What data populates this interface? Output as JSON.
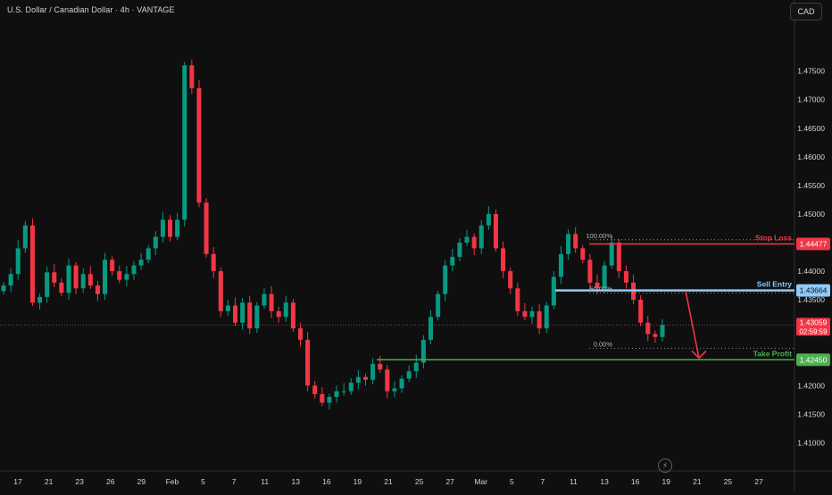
{
  "header": {
    "title": "U.S. Dollar / Canadian Dollar · 4h · VANTAGE",
    "currency_button": "CAD"
  },
  "colors": {
    "background": "#0f0f0f",
    "up": "#089981",
    "down": "#f23645",
    "stop_loss": "#f23645",
    "sell_entry": "#90caf9",
    "take_profit": "#4caf50",
    "current_price": "#f23645",
    "axis_text": "#d1d4dc"
  },
  "chart_data": {
    "type": "candlestick",
    "symbol": "USDCAD",
    "timeframe": "4h",
    "broker": "VANTAGE",
    "y_axis": {
      "ticks": [
        "1.47500",
        "1.47000",
        "1.46500",
        "1.46000",
        "1.45500",
        "1.45000",
        "1.44000",
        "1.43500",
        "1.42000",
        "1.41500",
        "1.41000"
      ],
      "ylim": [
        1.406,
        1.484
      ]
    },
    "x_axis": {
      "ticks": [
        "17",
        "21",
        "23",
        "26",
        "29",
        "Feb",
        "5",
        "7",
        "11",
        "13",
        "16",
        "19",
        "21",
        "25",
        "27",
        "Mar",
        "5",
        "7",
        "11",
        "13",
        "16",
        "19",
        "21",
        "25",
        "27"
      ]
    },
    "candles_close_path": [
      1.4375,
      1.4395,
      1.444,
      1.448,
      1.4345,
      1.4355,
      1.4398,
      1.438,
      1.4362,
      1.441,
      1.437,
      1.4395,
      1.4375,
      1.436,
      1.442,
      1.44,
      1.4385,
      1.4395,
      1.441,
      1.442,
      1.444,
      1.446,
      1.449,
      1.446,
      1.449,
      1.476,
      1.472,
      1.452,
      1.443,
      1.44,
      1.433,
      1.434,
      1.431,
      1.4345,
      1.43,
      1.434,
      1.436,
      1.433,
      1.432,
      1.4345,
      1.43,
      1.428,
      1.42,
      1.4185,
      1.417,
      1.418,
      1.419,
      1.419,
      1.4205,
      1.4215,
      1.421,
      1.4238,
      1.4228,
      1.419,
      1.4195,
      1.4212,
      1.4225,
      1.424,
      1.428,
      1.432,
      1.436,
      1.441,
      1.4425,
      1.445,
      1.446,
      1.444,
      1.448,
      1.45,
      1.444,
      1.44,
      1.437,
      1.433,
      1.432,
      1.433,
      1.43,
      1.434,
      1.439,
      1.443,
      1.4465,
      1.444,
      1.442,
      1.438,
      1.437,
      1.441,
      1.445,
      1.44,
      1.438,
      1.435,
      1.431,
      1.429,
      1.4285,
      1.4306
    ],
    "current_price": {
      "value": 1.43059,
      "label": "1.43059",
      "countdown": "02:59:59"
    },
    "levels": [
      {
        "name": "Stop Loss",
        "price": 1.44477,
        "label": "1.44477",
        "text": "Stop Loss",
        "color": "#f23645"
      },
      {
        "name": "Sell Entry",
        "price": 1.43664,
        "label": "1.43664",
        "text": "Sell Entry",
        "color": "#90caf9"
      },
      {
        "name": "Take Profit",
        "price": 1.4245,
        "label": "1.42450",
        "text": "Take Profit",
        "color": "#4caf50"
      }
    ],
    "fibonacci": [
      {
        "label": "100.00%",
        "price": 1.4455
      },
      {
        "label": "50.00%",
        "price": 1.4362
      },
      {
        "label": "0.00%",
        "price": 1.4265
      }
    ],
    "annotation": {
      "type": "arrow",
      "from_price": 1.4366,
      "to_price": 1.4248,
      "color": "#f23645"
    },
    "grid": false
  }
}
